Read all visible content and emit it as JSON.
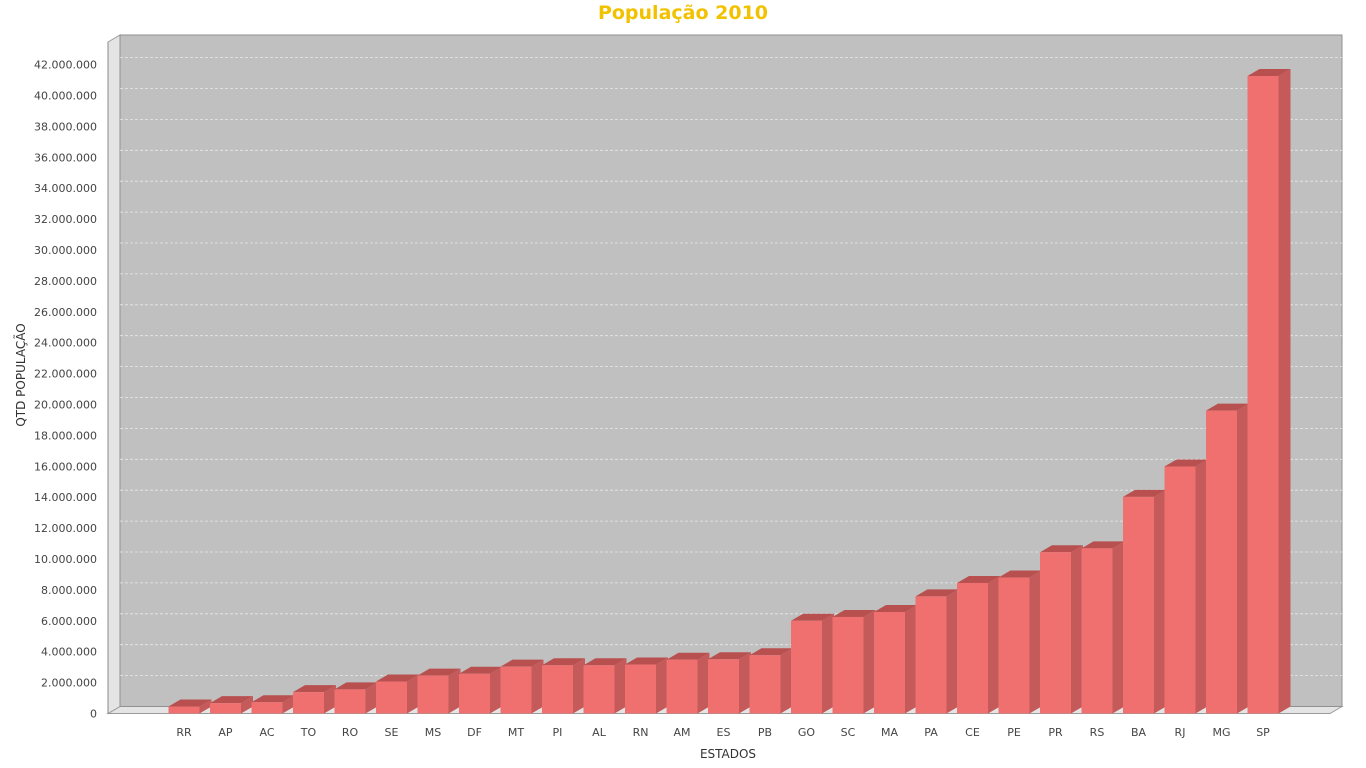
{
  "chart_data": {
    "type": "bar",
    "style": "3d",
    "title": "População 2010",
    "xlabel": "ESTADOS",
    "ylabel": "QTD POPULAÇÃO",
    "ylim": [
      0,
      43000000
    ],
    "yticks": [
      0,
      2000000,
      4000000,
      6000000,
      8000000,
      10000000,
      12000000,
      14000000,
      16000000,
      18000000,
      20000000,
      22000000,
      24000000,
      26000000,
      28000000,
      30000000,
      32000000,
      34000000,
      36000000,
      38000000,
      40000000,
      42000000
    ],
    "ytick_labels": [
      "0",
      "2.000.000",
      "4.000.000",
      "6.000.000",
      "8.000.000",
      "10.000.000",
      "12.000.000",
      "14.000.000",
      "16.000.000",
      "18.000.000",
      "20.000.000",
      "22.000.000",
      "24.000.000",
      "26.000.000",
      "28.000.000",
      "30.000.000",
      "32.000.000",
      "34.000.000",
      "36.000.000",
      "38.000.000",
      "40.000.000",
      "42.000.000"
    ],
    "grid": true,
    "legend": "none",
    "categories": [
      "RR",
      "AP",
      "AC",
      "TO",
      "RO",
      "SE",
      "MS",
      "DF",
      "MT",
      "PI",
      "AL",
      "RN",
      "AM",
      "ES",
      "PB",
      "GO",
      "SC",
      "MA",
      "PA",
      "CE",
      "PE",
      "PR",
      "RS",
      "BA",
      "RJ",
      "MG",
      "SP"
    ],
    "values": [
      450000,
      670000,
      730000,
      1380000,
      1560000,
      2070000,
      2450000,
      2570000,
      3030000,
      3120000,
      3120000,
      3170000,
      3480000,
      3510000,
      3770000,
      6000000,
      6250000,
      6570000,
      7580000,
      8450000,
      8800000,
      10440000,
      10690000,
      14020000,
      15990000,
      19600000,
      41260000
    ]
  },
  "colors": {
    "title": "#f2c200",
    "plot_background": "#c0c0c0",
    "bar_front": "#f07070",
    "bar_top": "#b85050",
    "bar_side": "#c45a5a",
    "gridline": "#e8e8e8"
  }
}
